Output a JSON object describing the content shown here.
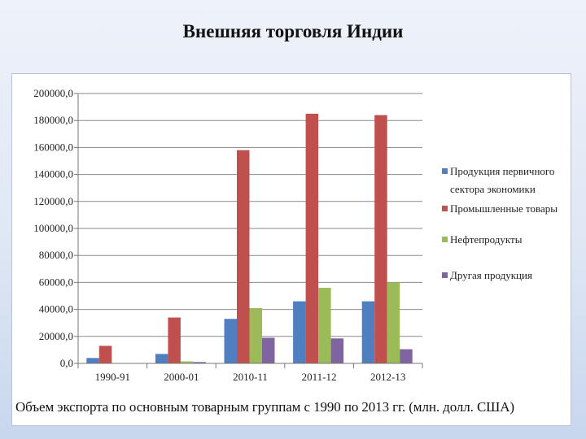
{
  "slide": {
    "title": "Внешняя торговля Индии",
    "caption": "Объем экспорта по основным товарным группам с 1990 по 2013 гг. (млн. долл. США)"
  },
  "chart_data": {
    "type": "bar",
    "categories": [
      "1990-91",
      "2000-01",
      "2010-11",
      "2011-12",
      "2012-13"
    ],
    "series": [
      {
        "name": "Продукция первичного сектора экономики",
        "name_lines": [
          "Продукция первичного",
          "сектора экономики"
        ],
        "color": "#4f7fc1",
        "values": [
          4000,
          7000,
          33000,
          46000,
          46000
        ]
      },
      {
        "name": "Промышленные товары",
        "name_lines": [
          "Промышленные товары"
        ],
        "color": "#c0504d",
        "values": [
          13000,
          34000,
          158000,
          185000,
          184000
        ]
      },
      {
        "name": "Нефтепродукты",
        "name_lines": [
          "Нефтепродукты"
        ],
        "color": "#9bbb59",
        "values": [
          0,
          1500,
          41000,
          56000,
          60000
        ]
      },
      {
        "name": "Другая продукция",
        "name_lines": [
          "Другая продукция"
        ],
        "color": "#8064a2",
        "values": [
          0,
          1000,
          19000,
          18500,
          10500
        ]
      }
    ],
    "yticks": [
      "0,0",
      "20000,0",
      "40000,0",
      "60000,0",
      "80000,0",
      "100000,0",
      "120000,0",
      "140000,0",
      "160000,0",
      "180000,0",
      "200000,0"
    ],
    "ylim": [
      0,
      200000
    ],
    "grid": true,
    "legend_position": "right"
  }
}
